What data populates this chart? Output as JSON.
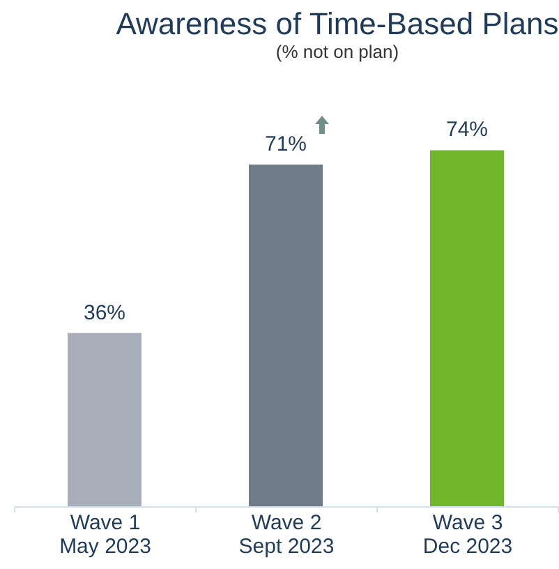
{
  "chart_data": {
    "type": "bar",
    "title": "Awareness of Time-Based Plans",
    "subtitle": "(% not on plan)",
    "categories": [
      "Wave 1\nMay 2023",
      "Wave 2\nSept 2023",
      "Wave 3\nDec 2023"
    ],
    "values": [
      36,
      71,
      74
    ],
    "colors": [
      "#a8aeb9",
      "#6f7b87",
      "#72b62e"
    ],
    "value_labels": [
      "36%",
      "71%",
      "74%"
    ]
  }
}
